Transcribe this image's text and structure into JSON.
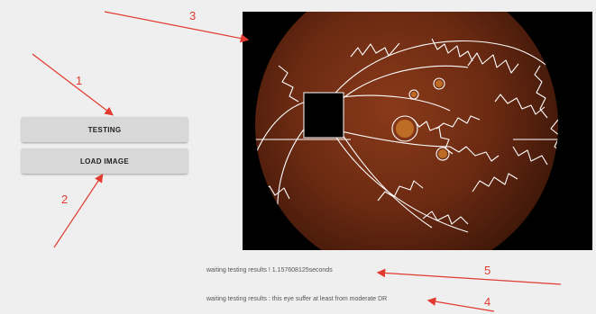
{
  "buttons": {
    "testing_label": "TESTING",
    "load_image_label": "LOAD IMAGE"
  },
  "status": {
    "time_text": "waiting testing results ! 1.157608125seconds",
    "result_text": "waiting testing results : this eye suffer at least from moderate DR"
  },
  "annotations": {
    "labels": [
      "1",
      "2",
      "3",
      "4",
      "5"
    ],
    "color": "#e23a2e"
  },
  "colors": {
    "background": "#efefef",
    "button": "#d8d8d8",
    "image_background": "#000000",
    "vessel_outline": "#ffffff",
    "fundus": "#6b2a12"
  }
}
